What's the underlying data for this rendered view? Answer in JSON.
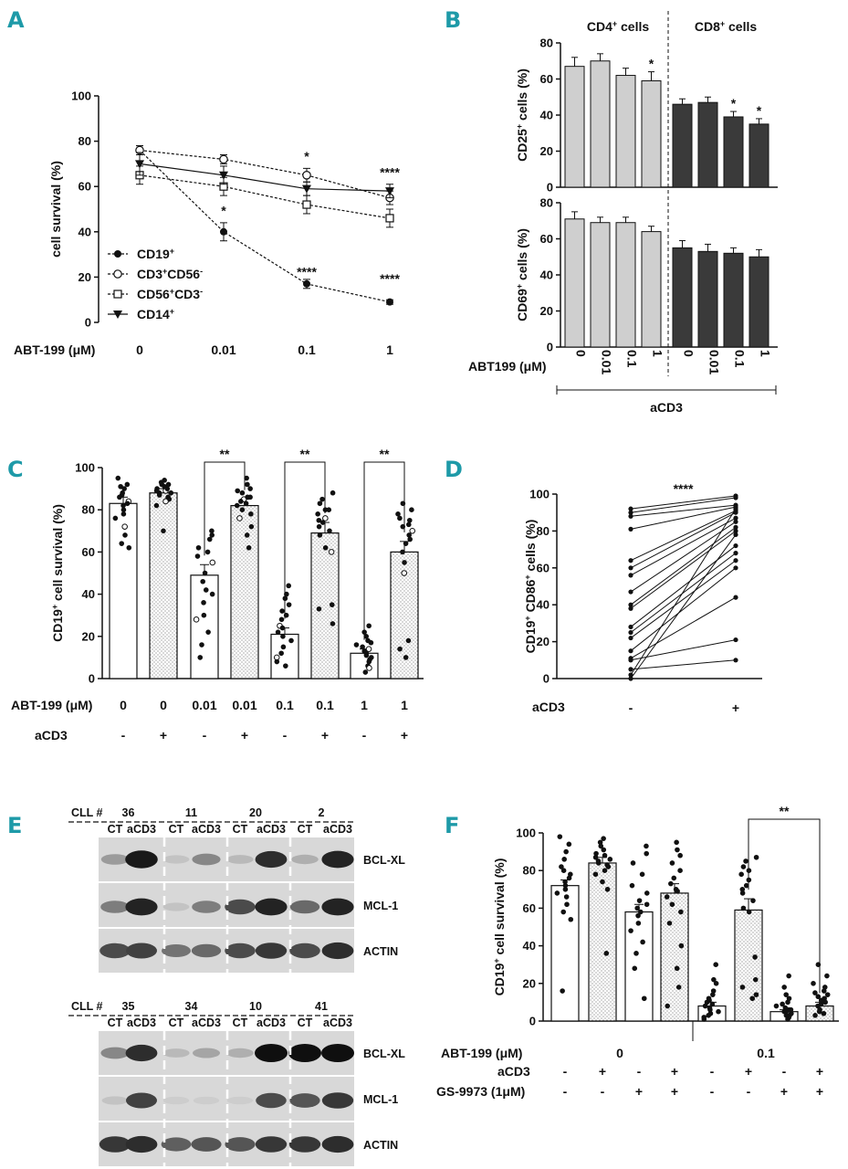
{
  "panels": {
    "A": "A",
    "B": "B",
    "C": "C",
    "D": "D",
    "E": "E",
    "F": "F"
  },
  "chart_data": [
    {
      "panel": "A",
      "type": "line",
      "ylabel": "cell survival (%)",
      "xlabel": "ABT-199 (μM)",
      "ylim": [
        0,
        100
      ],
      "yticks": [
        "0",
        "20",
        "40",
        "60",
        "80",
        "100"
      ],
      "categories": [
        "0",
        "0.01",
        "0.1",
        "1"
      ],
      "series": [
        {
          "name": "CD19+",
          "legend": [
            "CD19",
            "+",
            ""
          ],
          "values": [
            76,
            40,
            17,
            9
          ],
          "errors": [
            2,
            4,
            2,
            1
          ],
          "marker": "filled-circle",
          "dashed": true
        },
        {
          "name": "CD3+CD56-",
          "legend": [
            "CD3",
            "+",
            "CD56",
            "-"
          ],
          "values": [
            76,
            72,
            65,
            55
          ],
          "errors": [
            2,
            2,
            3,
            3
          ],
          "marker": "open-circle",
          "dashed": true
        },
        {
          "name": "CD56+CD3-",
          "legend": [
            "CD56",
            "+",
            "CD3",
            "-"
          ],
          "values": [
            65,
            60,
            52,
            46
          ],
          "errors": [
            4,
            4,
            4,
            4
          ],
          "marker": "open-square",
          "dashed": true
        },
        {
          "name": "CD14+",
          "legend": [
            "CD14",
            "+",
            ""
          ],
          "values": [
            70,
            65,
            59,
            58
          ],
          "errors": [
            5,
            4,
            3,
            3
          ],
          "marker": "filled-triangle-down",
          "dashed": false
        }
      ],
      "annotations": [
        {
          "category": "0.01",
          "value": 49,
          "text": "*"
        },
        {
          "category": "0.1",
          "value": 73,
          "text": "*"
        },
        {
          "category": "1",
          "value": 66,
          "text": "****"
        },
        {
          "category": "0.1",
          "value": 22,
          "text": "****"
        },
        {
          "category": "1",
          "value": 19,
          "text": "****"
        }
      ]
    },
    {
      "panel": "B-top",
      "type": "bar",
      "ylabel": [
        "CD25",
        "+",
        " cells (%)"
      ],
      "ylim": [
        0,
        80
      ],
      "yticks": [
        "0",
        "20",
        "40",
        "60",
        "80"
      ],
      "groups": [
        {
          "title": [
            "CD4",
            "+",
            " cells"
          ],
          "color": "#cfcfcf",
          "values": [
            67,
            70,
            62,
            59
          ],
          "errors": [
            5,
            4,
            4,
            5
          ],
          "stars": [
            "",
            "",
            "",
            "*"
          ]
        },
        {
          "title": [
            "CD8",
            "+",
            " cells"
          ],
          "color": "#3a3a3a",
          "values": [
            46,
            47,
            39,
            35
          ],
          "errors": [
            3,
            3,
            3,
            3
          ],
          "stars": [
            "",
            "",
            "*",
            "*"
          ]
        }
      ]
    },
    {
      "panel": "B-bottom",
      "type": "bar",
      "ylabel": [
        "CD69",
        "+",
        " cells (%)"
      ],
      "ylim": [
        0,
        80
      ],
      "yticks": [
        "0",
        "20",
        "40",
        "60",
        "80"
      ],
      "groups": [
        {
          "color": "#cfcfcf",
          "values": [
            71,
            69,
            69,
            64
          ],
          "errors": [
            4,
            3,
            3,
            3
          ]
        },
        {
          "color": "#3a3a3a",
          "values": [
            55,
            53,
            52,
            50
          ],
          "errors": [
            4,
            4,
            3,
            4
          ]
        }
      ],
      "xlabel": "ABT199 (μM)",
      "xticks": [
        "0",
        "0.01",
        "0.1",
        "1",
        "0",
        "0.01",
        "0.1",
        "1"
      ],
      "bracket": "aCD3"
    },
    {
      "panel": "C",
      "type": "bar",
      "ylabel": [
        "CD19",
        "+",
        " cell survival (%)"
      ],
      "ylim": [
        0,
        100
      ],
      "yticks": [
        "0",
        "20",
        "40",
        "60",
        "80",
        "100"
      ],
      "values": [
        83,
        88,
        49,
        82,
        21,
        69,
        12,
        60
      ],
      "errors": [
        3,
        2,
        5,
        3,
        3,
        5,
        2,
        5
      ],
      "patterns": [
        "plain",
        "dots",
        "plain",
        "dots",
        "plain",
        "dots",
        "plain",
        "dots"
      ],
      "row1_label": "ABT-199 (μM)",
      "row1": [
        "0",
        "0",
        "0.01",
        "0.01",
        "0.1",
        "0.1",
        "1",
        "1"
      ],
      "row2_label": "aCD3",
      "row2": [
        "-",
        "+",
        "-",
        "+",
        "-",
        "+",
        "-",
        "+"
      ],
      "brackets": [
        {
          "from": 2,
          "to": 3,
          "text": "**"
        },
        {
          "from": 4,
          "to": 5,
          "text": "**"
        },
        {
          "from": 6,
          "to": 7,
          "text": "**"
        }
      ],
      "points": [
        [
          95,
          92,
          90,
          88,
          86,
          84,
          83,
          82,
          80,
          78,
          76,
          72,
          68,
          64,
          62,
          91,
          87
        ],
        [
          94,
          93,
          92,
          91,
          90,
          89,
          88,
          88,
          87,
          86,
          85,
          84,
          82,
          70,
          92,
          90,
          89
        ],
        [
          70,
          68,
          62,
          60,
          58,
          55,
          50,
          46,
          42,
          36,
          30,
          28,
          22,
          16,
          10,
          66,
          40
        ],
        [
          95,
          92,
          90,
          88,
          86,
          85,
          84,
          83,
          82,
          80,
          78,
          76,
          72,
          68,
          62,
          89,
          86
        ],
        [
          44,
          40,
          35,
          30,
          28,
          25,
          22,
          20,
          18,
          15,
          12,
          10,
          8,
          6,
          38,
          24,
          32
        ],
        [
          88,
          85,
          83,
          80,
          78,
          76,
          74,
          72,
          70,
          68,
          62,
          60,
          35,
          33,
          26,
          80,
          75
        ],
        [
          25,
          22,
          20,
          18,
          16,
          14,
          12,
          10,
          9,
          8,
          6,
          5,
          3,
          15,
          11,
          13,
          17
        ],
        [
          83,
          80,
          78,
          75,
          73,
          70,
          68,
          66,
          64,
          60,
          55,
          50,
          18,
          14,
          10,
          72,
          76
        ]
      ]
    },
    {
      "panel": "D",
      "type": "line",
      "ylabel": [
        "CD19",
        "+",
        " CD86",
        "+",
        " cells (%)"
      ],
      "ylim": [
        0,
        100
      ],
      "yticks": [
        "0",
        "20",
        "40",
        "60",
        "80",
        "100"
      ],
      "categories": [
        "-",
        "+"
      ],
      "xlabel": "aCD3",
      "annotation": "****",
      "pairs": [
        [
          92,
          99
        ],
        [
          90,
          98
        ],
        [
          88,
          94
        ],
        [
          81,
          93
        ],
        [
          64,
          91
        ],
        [
          60,
          90
        ],
        [
          56,
          87
        ],
        [
          47,
          85
        ],
        [
          40,
          82
        ],
        [
          38,
          80
        ],
        [
          28,
          72
        ],
        [
          25,
          68
        ],
        [
          22,
          64
        ],
        [
          15,
          60
        ],
        [
          11,
          44
        ],
        [
          10,
          21
        ],
        [
          5,
          10
        ],
        [
          2,
          92
        ],
        [
          0,
          78
        ]
      ]
    },
    {
      "panel": "F",
      "type": "bar",
      "ylabel": [
        "CD19",
        "+",
        " cell survival (%)"
      ],
      "ylim": [
        0,
        100
      ],
      "yticks": [
        "0",
        "20",
        "40",
        "60",
        "80",
        "100"
      ],
      "values": [
        72,
        84,
        58,
        68,
        8,
        59,
        5,
        8
      ],
      "errors": [
        3,
        3,
        4,
        5,
        2,
        6,
        1,
        2
      ],
      "patterns": [
        "plain",
        "dots",
        "plain",
        "dots",
        "plain",
        "dots",
        "plain",
        "dots"
      ],
      "row1_label": "ABT-199 (μM)",
      "row1_groups": [
        "0",
        "0.1"
      ],
      "row2_label": "aCD3",
      "row2": [
        "-",
        "+",
        "-",
        "+",
        "-",
        "+",
        "-",
        "+"
      ],
      "row3_label": "GS-9973 (1μM)",
      "row3": [
        "-",
        "-",
        "+",
        "+",
        "-",
        "-",
        "+",
        "+"
      ],
      "brackets": [
        {
          "from": 5,
          "to": 7,
          "text": "**"
        }
      ],
      "points": [
        [
          98,
          94,
          90,
          86,
          82,
          78,
          76,
          74,
          72,
          70,
          68,
          66,
          62,
          58,
          54,
          16,
          80
        ],
        [
          97,
          95,
          93,
          91,
          89,
          88,
          86,
          85,
          84,
          83,
          82,
          80,
          78,
          74,
          70,
          36,
          87
        ],
        [
          93,
          89,
          84,
          78,
          72,
          68,
          64,
          60,
          58,
          56,
          52,
          48,
          42,
          36,
          28,
          12,
          62
        ],
        [
          95,
          91,
          88,
          84,
          80,
          76,
          73,
          70,
          66,
          62,
          58,
          52,
          40,
          28,
          18,
          8,
          69
        ],
        [
          30,
          22,
          20,
          16,
          12,
          10,
          8,
          6,
          5,
          4,
          3,
          2,
          1,
          14,
          9,
          7,
          11
        ],
        [
          87,
          85,
          82,
          80,
          78,
          75,
          72,
          68,
          64,
          60,
          58,
          34,
          22,
          18,
          14,
          12,
          70
        ],
        [
          24,
          18,
          14,
          10,
          8,
          6,
          5,
          4,
          3,
          2,
          1,
          12,
          7,
          9,
          3,
          5,
          6
        ],
        [
          30,
          24,
          20,
          18,
          16,
          14,
          12,
          10,
          9,
          8,
          6,
          5,
          4,
          3,
          11,
          13,
          15
        ]
      ]
    }
  ],
  "westerns": [
    {
      "cll_label": "CLL #",
      "patients": [
        "36",
        "11",
        "20",
        "2"
      ],
      "lane_labels": [
        "CT",
        "aCD3"
      ],
      "rows": [
        {
          "protein": "BCL-XL",
          "intensity": [
            0.3,
            0.95,
            0.1,
            0.4,
            0.15,
            0.85,
            0.2,
            0.9
          ]
        },
        {
          "protein": "MCL-1",
          "intensity": [
            0.45,
            0.9,
            0.1,
            0.45,
            0.7,
            0.9,
            0.55,
            0.9
          ]
        },
        {
          "protein": "ACTIN",
          "intensity": [
            0.7,
            0.75,
            0.5,
            0.55,
            0.7,
            0.8,
            0.7,
            0.85
          ]
        }
      ]
    },
    {
      "cll_label": "CLL #",
      "patients": [
        "35",
        "34",
        "10",
        "41"
      ],
      "lane_labels": [
        "CT",
        "aCD3"
      ],
      "rows": [
        {
          "protein": "BCL-XL",
          "intensity": [
            0.4,
            0.85,
            0.15,
            0.25,
            0.2,
            1.0,
            1.0,
            1.0
          ]
        },
        {
          "protein": "MCL-1",
          "intensity": [
            0.1,
            0.75,
            0.05,
            0.05,
            0.05,
            0.7,
            0.65,
            0.8
          ]
        },
        {
          "protein": "ACTIN",
          "intensity": [
            0.8,
            0.85,
            0.6,
            0.65,
            0.65,
            0.8,
            0.8,
            0.85
          ]
        }
      ]
    }
  ]
}
